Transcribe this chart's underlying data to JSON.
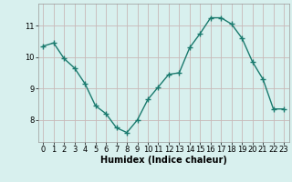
{
  "x": [
    0,
    1,
    2,
    3,
    4,
    5,
    6,
    7,
    8,
    9,
    10,
    11,
    12,
    13,
    14,
    15,
    16,
    17,
    18,
    19,
    20,
    21,
    22,
    23
  ],
  "y": [
    10.35,
    10.45,
    9.95,
    9.65,
    9.15,
    8.45,
    8.2,
    7.75,
    7.6,
    8.0,
    8.65,
    9.05,
    9.45,
    9.5,
    10.3,
    10.75,
    11.25,
    11.25,
    11.05,
    10.6,
    9.85,
    9.3,
    8.35,
    8.35
  ],
  "line_color": "#1a7a6e",
  "marker": "+",
  "marker_size": 4,
  "bg_color": "#d8f0ee",
  "grid_color": "#c8b8b8",
  "xlabel": "Humidex (Indice chaleur)",
  "xlim": [
    -0.5,
    23.5
  ],
  "ylim": [
    7.3,
    11.7
  ],
  "yticks": [
    8,
    9,
    10,
    11
  ],
  "xticks": [
    0,
    1,
    2,
    3,
    4,
    5,
    6,
    7,
    8,
    9,
    10,
    11,
    12,
    13,
    14,
    15,
    16,
    17,
    18,
    19,
    20,
    21,
    22,
    23
  ],
  "xlabel_fontsize": 7,
  "tick_fontsize": 6,
  "linewidth": 1.0,
  "markeredgewidth": 1.0
}
